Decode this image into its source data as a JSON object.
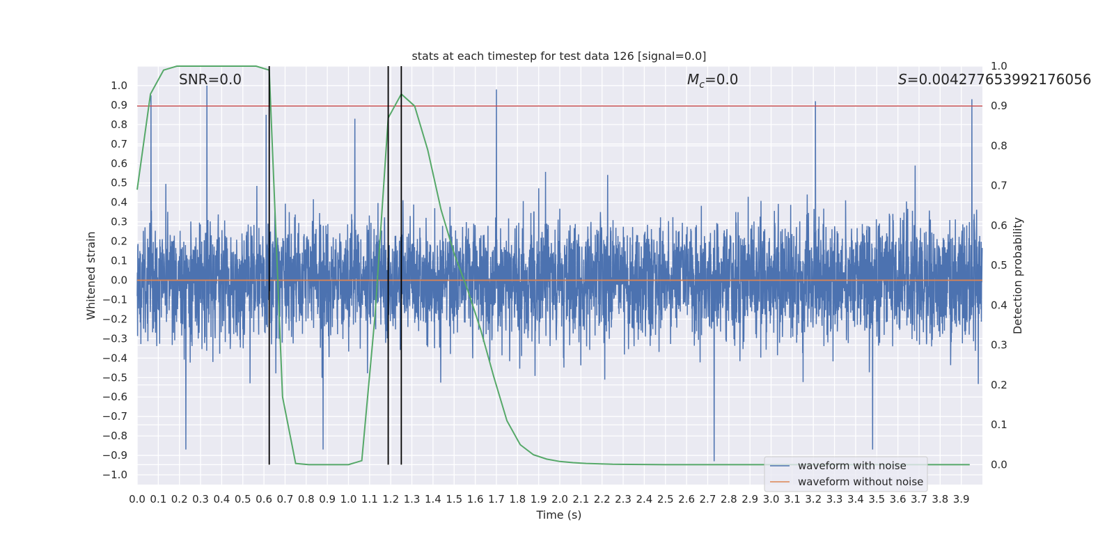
{
  "chart_data": {
    "type": "line",
    "title": "stats at each timestep for test data 126 [signal=0.0]",
    "xlabel": "Time (s)",
    "ylabel": "Whitened strain",
    "y2label": "Detection probability",
    "xlim": [
      0.0,
      4.0
    ],
    "ylim": [
      -1.05,
      1.1
    ],
    "y2lim": [
      -0.05,
      1.0
    ],
    "grid": true,
    "x_ticks": [
      "0.0",
      "0.1",
      "0.2",
      "0.3",
      "0.4",
      "0.5",
      "0.6",
      "0.7",
      "0.8",
      "0.9",
      "1.0",
      "1.1",
      "1.2",
      "1.3",
      "1.4",
      "1.5",
      "1.6",
      "1.7",
      "1.8",
      "1.9",
      "2.0",
      "2.1",
      "2.2",
      "2.3",
      "2.4",
      "2.5",
      "2.6",
      "2.7",
      "2.8",
      "2.9",
      "3.0",
      "3.1",
      "3.2",
      "3.3",
      "3.4",
      "3.5",
      "3.6",
      "3.7",
      "3.8",
      "3.9"
    ],
    "y_ticks": [
      "1.0",
      "0.9",
      "0.8",
      "0.7",
      "0.6",
      "0.5",
      "0.4",
      "0.3",
      "0.2",
      "0.1",
      "0.0",
      "−0.1",
      "−0.2",
      "−0.3",
      "−0.4",
      "−0.5",
      "−0.6",
      "−0.7",
      "−0.8",
      "−0.9",
      "−1.0"
    ],
    "y2_ticks": [
      "1.0",
      "0.9",
      "0.8",
      "0.7",
      "0.6",
      "0.5",
      "0.4",
      "0.3",
      "0.2",
      "0.1",
      "0.0"
    ],
    "annotations": {
      "snr": "SNR=0.0",
      "mc_symbol": "M",
      "mc_sub": "c",
      "mc_value": "=0.0",
      "s_symbol": "S",
      "s_value": "=0.004277653992176056"
    },
    "series": [
      {
        "name": "waveform with noise",
        "color": "#4c72b0",
        "sampling_rate": 1024,
        "amplitude_range": [
          -0.93,
          1.0
        ],
        "spike_peaks": [
          {
            "x": 0.065,
            "y": 0.95
          },
          {
            "x": 0.33,
            "y": 1.0
          },
          {
            "x": 0.61,
            "y": 0.85
          },
          {
            "x": 1.03,
            "y": 0.83
          },
          {
            "x": 1.7,
            "y": 0.98
          },
          {
            "x": 3.21,
            "y": 0.92
          },
          {
            "x": 3.95,
            "y": 0.93
          },
          {
            "x": 0.23,
            "y": -0.87
          },
          {
            "x": 0.88,
            "y": -0.87
          },
          {
            "x": 2.73,
            "y": -0.93
          },
          {
            "x": 3.48,
            "y": -0.87
          }
        ]
      },
      {
        "name": "waveform without noise",
        "color": "#dd8452",
        "x": [
          0.0,
          4.0
        ],
        "y": [
          0.0,
          0.0
        ]
      },
      {
        "color": "#55a868",
        "axis": "right",
        "x": [
          0.0,
          0.063,
          0.125,
          0.188,
          0.25,
          0.313,
          0.375,
          0.438,
          0.5,
          0.563,
          0.625,
          0.688,
          0.75,
          0.813,
          0.875,
          0.938,
          1.0,
          1.063,
          1.125,
          1.188,
          1.25,
          1.313,
          1.375,
          1.438,
          1.5,
          1.563,
          1.625,
          1.688,
          1.75,
          1.813,
          1.875,
          1.938,
          2.0,
          2.063,
          2.125,
          2.25,
          2.5,
          3.0,
          3.5,
          3.94
        ],
        "y": [
          0.69,
          0.93,
          0.99,
          1.0,
          1.0,
          1.0,
          1.0,
          1.0,
          1.0,
          1.0,
          0.99,
          0.17,
          0.003,
          0.0,
          0.0,
          0.0,
          0.0,
          0.01,
          0.37,
          0.87,
          0.93,
          0.9,
          0.79,
          0.64,
          0.53,
          0.44,
          0.34,
          0.22,
          0.11,
          0.05,
          0.025,
          0.014,
          0.008,
          0.005,
          0.003,
          0.001,
          0.0,
          0.0,
          0.0,
          0.0
        ]
      }
    ],
    "threshold": {
      "color": "#c44e52",
      "y2": 0.9
    },
    "vlines": {
      "color": "#000000",
      "x": [
        0.625,
        1.188,
        1.25
      ],
      "y2_range": [
        0.0,
        1.0
      ]
    },
    "legend": {
      "position": "lower-right",
      "entries": [
        {
          "label": "waveform with noise",
          "color": "#4c72b0"
        },
        {
          "label": "waveform without noise",
          "color": "#dd8452"
        }
      ]
    }
  }
}
